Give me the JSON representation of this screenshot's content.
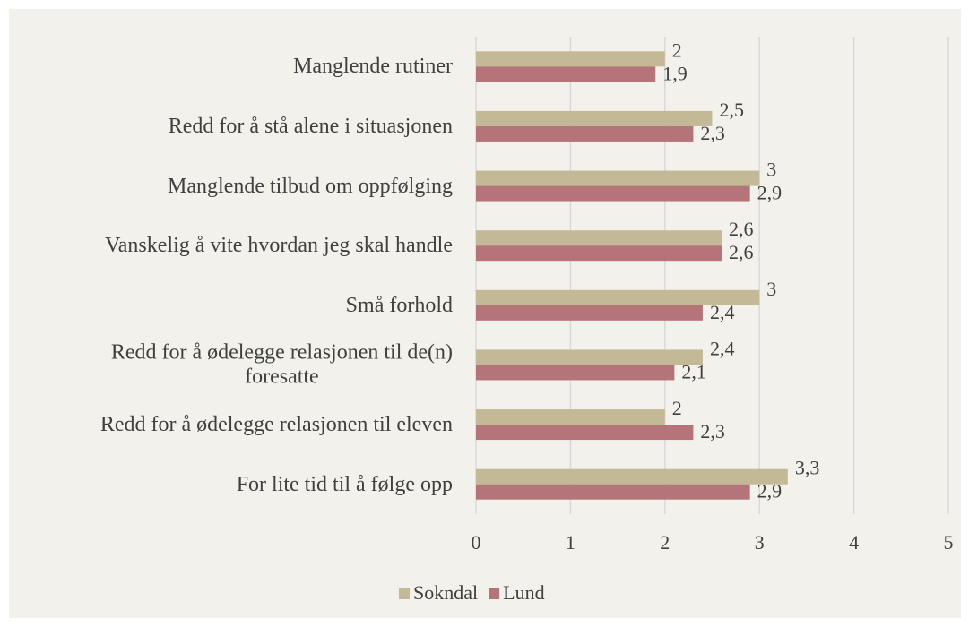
{
  "chart_data": {
    "type": "bar",
    "orientation": "horizontal",
    "categories": [
      "Manglende rutiner",
      "Redd for å stå alene i situasjonen",
      "Manglende tilbud om oppfølging",
      "Vanskelig å vite hvordan jeg skal handle",
      "Små forhold",
      "Redd for å ødelegge relasjonen til de(n)\nforesatte",
      "Redd for å ødelegge relasjonen til eleven",
      "For lite tid til å følge opp"
    ],
    "series": [
      {
        "name": "Sokndal",
        "color": "#c4b996",
        "values": [
          2,
          2.5,
          3,
          2.6,
          3,
          2.4,
          2,
          3.3
        ],
        "value_labels": [
          "2",
          "2,5",
          "3",
          "2,6",
          "3",
          "2,4",
          "2",
          "3,3"
        ]
      },
      {
        "name": "Lund",
        "color": "#b5737a",
        "values": [
          1.9,
          2.3,
          2.9,
          2.6,
          2.4,
          2.1,
          2.3,
          2.9
        ],
        "value_labels": [
          "1,9",
          "2,3",
          "2,9",
          "2,6",
          "2,4",
          "2,1",
          "2,3",
          "2,9"
        ]
      }
    ],
    "xlim": [
      0,
      5
    ],
    "xticks": [
      0,
      1,
      2,
      3,
      4,
      5
    ],
    "grid": true,
    "legend": "bottom"
  }
}
